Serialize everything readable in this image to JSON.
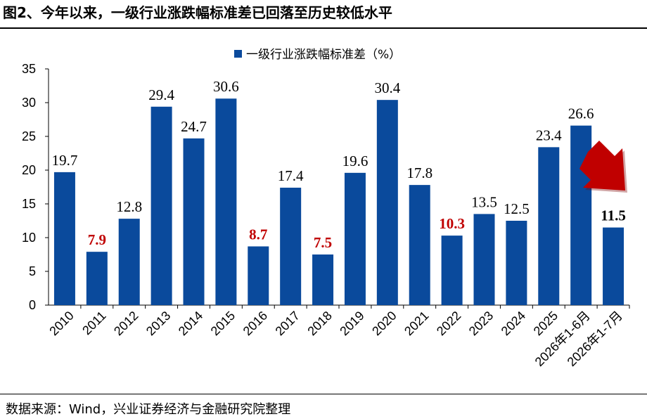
{
  "title": "图2、今年以来，一级行业涨跌幅标准差已回落至历史较低水平",
  "source": "数据来源：Wind，兴业证券经济与金融研究院整理",
  "colors": {
    "bar": "#0a4a9c",
    "highlight": "#c00000",
    "arrow": "#c00000"
  },
  "chart_data": {
    "type": "bar",
    "legend": "一级行业涨跌幅标准差（%）",
    "legend_position": "top-center",
    "categories": [
      "2010",
      "2011",
      "2012",
      "2013",
      "2014",
      "2015",
      "2016",
      "2017",
      "2018",
      "2019",
      "2020",
      "2021",
      "2022",
      "2023",
      "2024",
      "2025",
      "2026年1-6月",
      "2026年1-7月"
    ],
    "values": [
      19.7,
      7.9,
      12.8,
      29.4,
      24.7,
      30.6,
      8.7,
      17.4,
      7.5,
      19.6,
      30.4,
      17.8,
      10.3,
      13.5,
      12.5,
      23.4,
      26.6,
      11.5
    ],
    "data_labels": [
      "19.7",
      "7.9",
      "12.8",
      "29.4",
      "24.7",
      "30.6",
      "8.7",
      "17.4",
      "7.5",
      "19.6",
      "30.4",
      "17.8",
      "10.3",
      "13.5",
      "12.5",
      "23.4",
      "26.6",
      "11.5"
    ],
    "label_styles": [
      "normal",
      "red",
      "normal",
      "normal",
      "normal",
      "normal",
      "red",
      "normal",
      "red",
      "normal",
      "normal",
      "normal",
      "red",
      "normal",
      "normal",
      "normal",
      "normal",
      "bold"
    ],
    "ylim": [
      0,
      35
    ],
    "yticks": [
      "0",
      "5",
      "10",
      "15",
      "20",
      "25",
      "30",
      "35"
    ],
    "grid": false,
    "annotation": "red arrow pointing down toward the last bar"
  }
}
